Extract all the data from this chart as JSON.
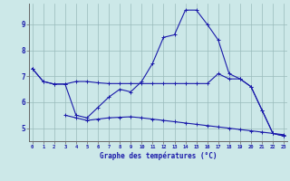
{
  "xlabel": "Graphe des températures (°C)",
  "hours": [
    0,
    1,
    2,
    3,
    4,
    5,
    6,
    7,
    8,
    9,
    10,
    11,
    12,
    13,
    14,
    15,
    16,
    17,
    18,
    19,
    20,
    21,
    22,
    23
  ],
  "line1": [
    7.3,
    6.8,
    6.7,
    6.7,
    6.8,
    6.8,
    6.75,
    6.72,
    6.72,
    6.72,
    6.72,
    6.72,
    6.72,
    6.72,
    6.72,
    6.72,
    6.72,
    7.1,
    6.9,
    6.9,
    6.6,
    5.7,
    4.8,
    4.7
  ],
  "line2": [
    7.3,
    6.8,
    6.7,
    6.7,
    5.5,
    5.4,
    5.8,
    6.2,
    6.5,
    6.4,
    6.8,
    7.5,
    8.5,
    8.6,
    9.55,
    9.55,
    9.0,
    8.4,
    7.1,
    6.9,
    6.6,
    5.7,
    4.8,
    4.7
  ],
  "line3": [
    null,
    null,
    null,
    5.5,
    5.4,
    5.3,
    5.35,
    5.4,
    5.42,
    5.44,
    5.4,
    5.35,
    5.3,
    5.25,
    5.2,
    5.15,
    5.1,
    5.05,
    5.0,
    4.95,
    4.9,
    4.85,
    4.8,
    4.75
  ],
  "bg_color": "#cce8e8",
  "line_color": "#1a1aaa",
  "grid_color": "#99bbbb",
  "ylim": [
    4.5,
    9.8
  ],
  "xlim": [
    -0.3,
    23.3
  ],
  "yticks": [
    5,
    6,
    7,
    8,
    9
  ],
  "marker": "+",
  "markersize": 3,
  "linewidth": 0.8
}
